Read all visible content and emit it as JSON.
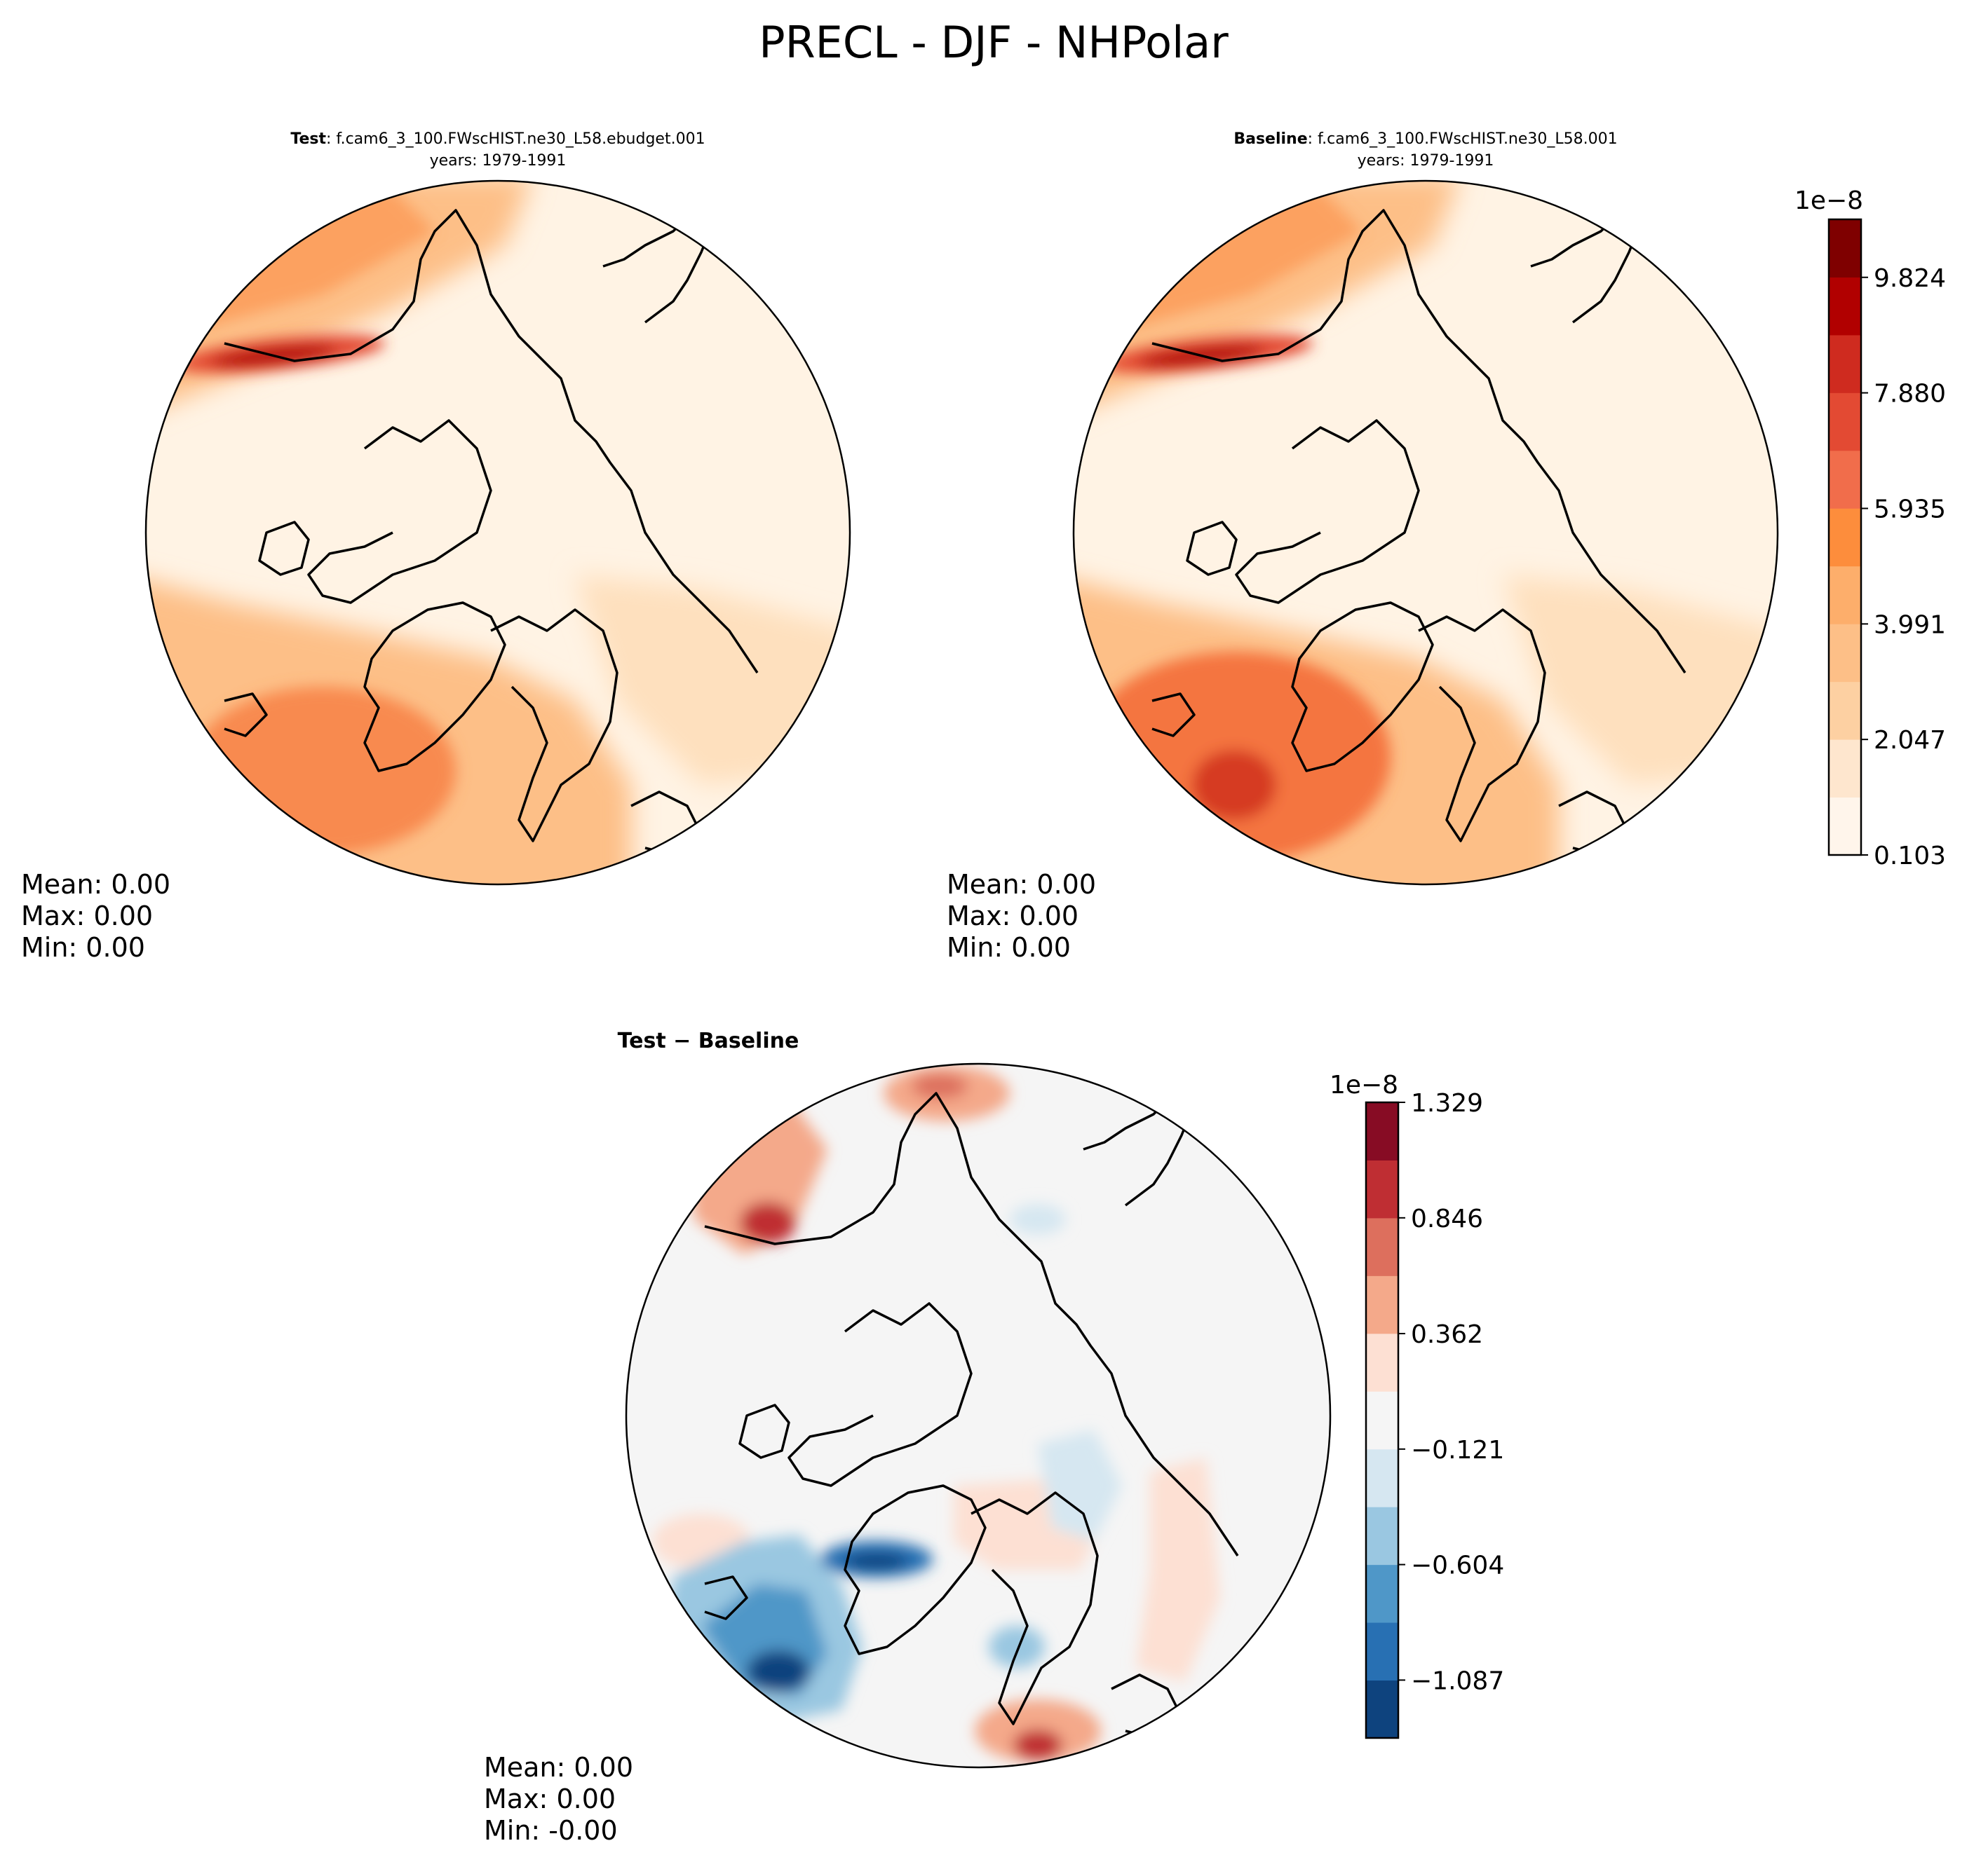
{
  "figure": {
    "title": "PRECL - DJF - NHPolar"
  },
  "chart_data": [
    {
      "type": "heatmap",
      "id": "test",
      "title_bold": "Test",
      "title_rest": ": f.cam6_3_100.FWscHIST.ne30_L58.ebudget.001",
      "subtitle": "years: 1979-1991",
      "stats": [
        "Mean:  0.00",
        "Max:  0.00",
        "Min:  0.00"
      ]
    },
    {
      "type": "heatmap",
      "id": "baseline",
      "title_bold": "Baseline",
      "title_rest": ": f.cam6_3_100.FWscHIST.ne30_L58.001",
      "subtitle": "years: 1979-1991",
      "stats": [
        "Mean:  0.00",
        "Max:  0.00",
        "Min:  0.00"
      ],
      "colorbar": {
        "exponent_label": "1e−8",
        "range": [
          0.103,
          10.8
        ],
        "levels": 11,
        "ticks": [
          0.103,
          2.047,
          3.991,
          5.935,
          7.88,
          9.824
        ],
        "tick_labels": [
          "0.103",
          "2.047",
          "3.991",
          "5.935",
          "7.880",
          "9.824"
        ],
        "colors": [
          "#fff5eb",
          "#fee6ce",
          "#fdd0a2",
          "#fdbf87",
          "#fdae6b",
          "#fd8d3c",
          "#f16d4b",
          "#e34a33",
          "#cf2b1f",
          "#b10000",
          "#7f0000"
        ]
      }
    },
    {
      "type": "heatmap",
      "id": "diff",
      "title_bold": "Test − Baseline",
      "stats": [
        "Mean:  0.00",
        "Max:  0.00",
        "Min: -0.00"
      ],
      "colorbar": {
        "exponent_label": "1e−8",
        "range": [
          -1.329,
          1.329
        ],
        "levels": 11,
        "ticks": [
          -1.087,
          -0.604,
          -0.121,
          0.362,
          0.846,
          1.329
        ],
        "tick_labels": [
          "−1.087",
          "−0.604",
          "−0.121",
          "0.362",
          "0.846",
          "1.329"
        ],
        "colors": [
          "#0e437e",
          "#2870b3",
          "#4f97c8",
          "#9ac7e1",
          "#d6e7f1",
          "#f5f5f5",
          "#fde0d3",
          "#f4a98a",
          "#dd6f5d",
          "#bf2e33",
          "#870c24"
        ]
      }
    }
  ]
}
